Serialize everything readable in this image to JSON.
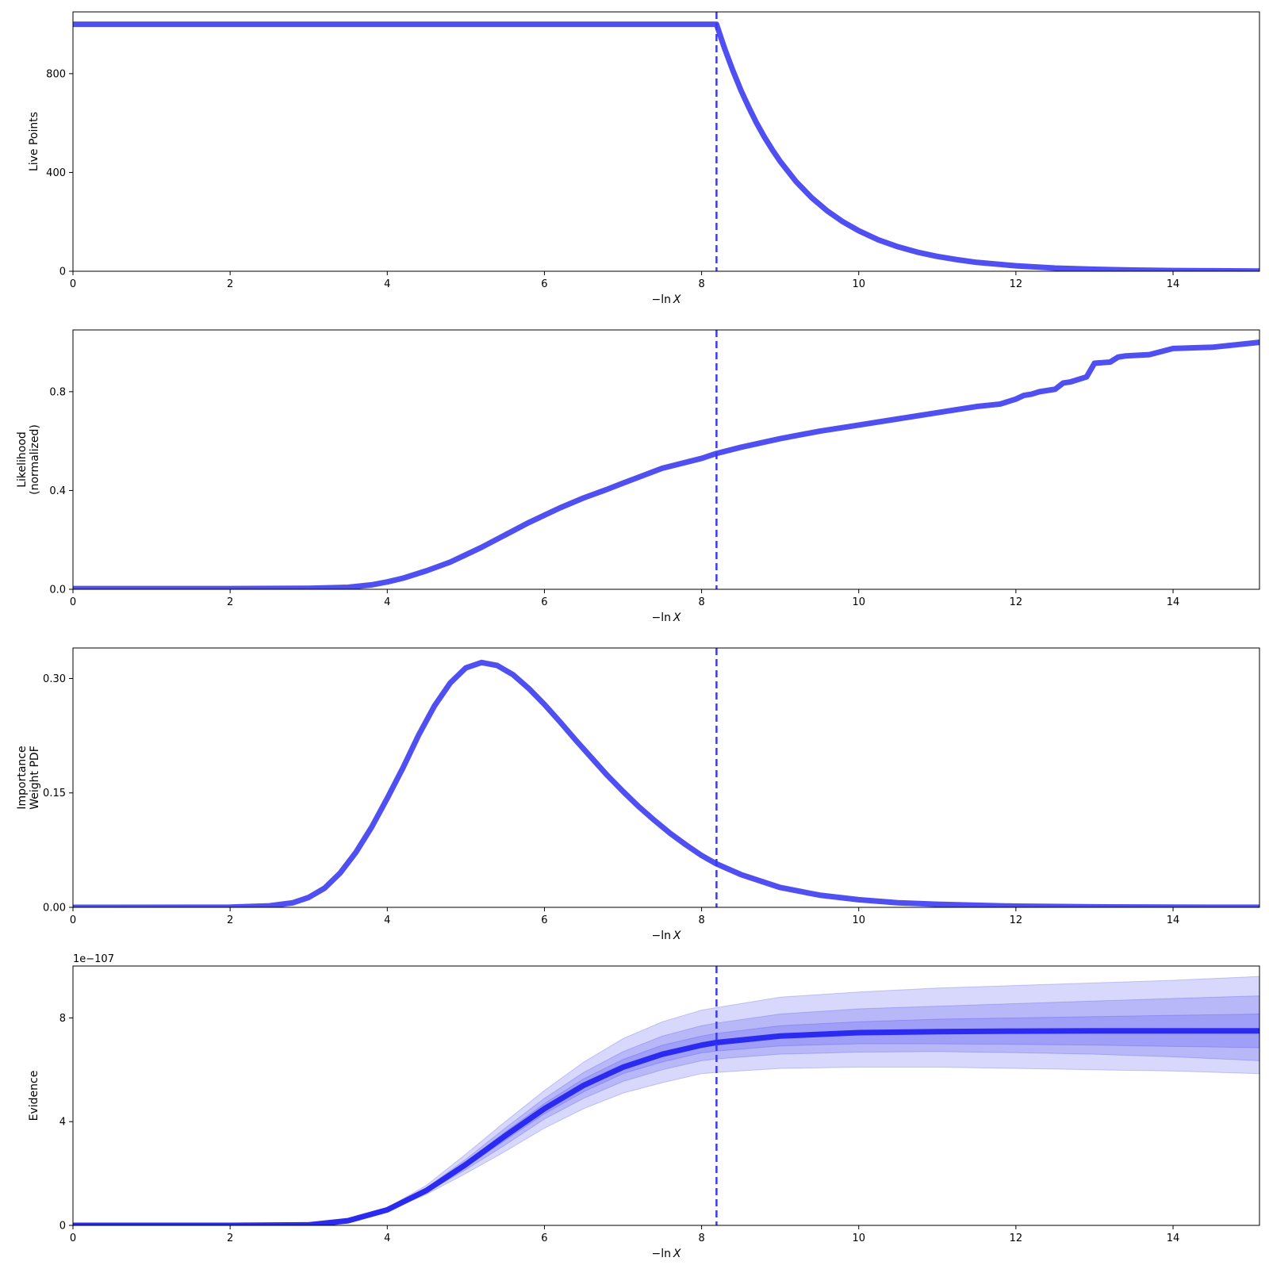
{
  "chart_data": [
    {
      "type": "line",
      "panel": "live-points",
      "ylabel_lines": [
        "Live Points"
      ],
      "xlabel_prefix": "−ln",
      "xlabel_var": "X",
      "xlim": [
        0,
        15.1
      ],
      "ylim": [
        0,
        1050
      ],
      "x_ticks": [
        0,
        2,
        4,
        6,
        8,
        10,
        12,
        14
      ],
      "x_tick_labels": [
        "0",
        "2",
        "4",
        "6",
        "8",
        "10",
        "12",
        "14"
      ],
      "y_ticks": [
        0,
        400,
        800
      ],
      "y_tick_labels": [
        "0",
        "400",
        "800"
      ],
      "vline_x": 8.19,
      "line_color": "#5050f2",
      "series": {
        "x": [
          0,
          8.19,
          8.25,
          8.3,
          8.4,
          8.5,
          8.6,
          8.7,
          8.8,
          8.9,
          9.0,
          9.2,
          9.4,
          9.6,
          9.8,
          10.0,
          10.25,
          10.5,
          10.75,
          11.0,
          11.25,
          11.5,
          12.0,
          12.5,
          13.0,
          13.5,
          14.0,
          14.5,
          15.1
        ],
        "y": [
          1000,
          1000,
          942,
          896,
          811,
          733,
          664,
          600,
          543,
          492,
          445,
          364,
          298,
          244,
          200,
          164,
          127,
          99,
          77,
          60,
          47,
          36,
          22,
          13,
          8,
          5,
          3,
          2,
          1
        ]
      }
    },
    {
      "type": "line",
      "panel": "likelihood",
      "ylabel_lines": [
        "Likelihood",
        "(normalized)"
      ],
      "xlabel_prefix": "−ln",
      "xlabel_var": "X",
      "xlim": [
        0,
        15.1
      ],
      "ylim": [
        0,
        1.05
      ],
      "x_ticks": [
        0,
        2,
        4,
        6,
        8,
        10,
        12,
        14
      ],
      "x_tick_labels": [
        "0",
        "2",
        "4",
        "6",
        "8",
        "10",
        "12",
        "14"
      ],
      "y_ticks": [
        0,
        0.4,
        0.8
      ],
      "y_tick_labels": [
        "0.0",
        "0.4",
        "0.8"
      ],
      "vline_x": 8.19,
      "line_color": "#5050f2",
      "series": {
        "x": [
          0,
          2,
          3,
          3.5,
          3.8,
          4.0,
          4.2,
          4.5,
          4.8,
          5.0,
          5.2,
          5.5,
          5.8,
          6.0,
          6.2,
          6.5,
          6.8,
          7.0,
          7.5,
          8.0,
          8.19,
          8.5,
          9.0,
          9.5,
          10.0,
          10.5,
          11.0,
          11.5,
          11.8,
          12.0,
          12.1,
          12.2,
          12.3,
          12.5,
          12.6,
          12.7,
          12.9,
          13.0,
          13.2,
          13.3,
          13.4,
          13.7,
          14.0,
          14.5,
          15.1
        ],
        "y": [
          0.003,
          0.003,
          0.004,
          0.008,
          0.018,
          0.03,
          0.045,
          0.075,
          0.11,
          0.14,
          0.17,
          0.22,
          0.27,
          0.3,
          0.33,
          0.37,
          0.405,
          0.43,
          0.49,
          0.53,
          0.55,
          0.575,
          0.61,
          0.64,
          0.665,
          0.69,
          0.715,
          0.74,
          0.75,
          0.77,
          0.785,
          0.79,
          0.8,
          0.81,
          0.835,
          0.84,
          0.86,
          0.915,
          0.92,
          0.94,
          0.945,
          0.95,
          0.975,
          0.98,
          1.0
        ]
      }
    },
    {
      "type": "line",
      "panel": "importance-weight",
      "ylabel_lines": [
        "Importance",
        "Weight PDF"
      ],
      "xlabel_prefix": "−ln",
      "xlabel_var": "X",
      "xlim": [
        0,
        15.1
      ],
      "ylim": [
        0,
        0.34
      ],
      "x_ticks": [
        0,
        2,
        4,
        6,
        8,
        10,
        12,
        14
      ],
      "x_tick_labels": [
        "0",
        "2",
        "4",
        "6",
        "8",
        "10",
        "12",
        "14"
      ],
      "y_ticks": [
        0,
        0.15,
        0.3
      ],
      "y_tick_labels": [
        "0.00",
        "0.15",
        "0.30"
      ],
      "vline_x": 8.19,
      "line_color": "#5050f2",
      "series": {
        "x": [
          0,
          2,
          2.5,
          2.8,
          3.0,
          3.2,
          3.4,
          3.6,
          3.8,
          4.0,
          4.2,
          4.4,
          4.6,
          4.8,
          5.0,
          5.2,
          5.4,
          5.6,
          5.8,
          6.0,
          6.2,
          6.4,
          6.6,
          6.8,
          7.0,
          7.2,
          7.4,
          7.6,
          7.8,
          8.0,
          8.19,
          8.5,
          9.0,
          9.5,
          10.0,
          10.5,
          11.0,
          12.0,
          13.0,
          14.0,
          15.1
        ],
        "y": [
          0,
          0.0002,
          0.002,
          0.006,
          0.013,
          0.025,
          0.045,
          0.072,
          0.105,
          0.143,
          0.183,
          0.226,
          0.264,
          0.294,
          0.314,
          0.321,
          0.317,
          0.305,
          0.287,
          0.266,
          0.243,
          0.219,
          0.196,
          0.173,
          0.152,
          0.132,
          0.114,
          0.097,
          0.082,
          0.068,
          0.057,
          0.043,
          0.026,
          0.016,
          0.01,
          0.006,
          0.004,
          0.0015,
          0.0006,
          0.0002,
          0.0001
        ]
      }
    },
    {
      "type": "area",
      "panel": "evidence",
      "ylabel_lines": [
        "Evidence"
      ],
      "xlabel_prefix": "−ln",
      "xlabel_var": "X",
      "offset_text": "1e−107",
      "xlim": [
        0,
        15.1
      ],
      "ylim": [
        0,
        10
      ],
      "x_ticks": [
        0,
        2,
        4,
        6,
        8,
        10,
        12,
        14
      ],
      "x_tick_labels": [
        "0",
        "2",
        "4",
        "6",
        "8",
        "10",
        "12",
        "14"
      ],
      "y_ticks": [
        0,
        4,
        8
      ],
      "y_tick_labels": [
        "0",
        "4",
        "8"
      ],
      "vline_x": 8.19,
      "line_color": "#2a2af0",
      "band_color": "#3b3bf0",
      "band_opacity": 0.2,
      "x": [
        0,
        2,
        3,
        3.5,
        4,
        4.5,
        5,
        5.5,
        6,
        6.5,
        7,
        7.5,
        8,
        8.19,
        9,
        10,
        11,
        12,
        13,
        14,
        15.1
      ],
      "median": [
        0,
        0,
        0.02,
        0.18,
        0.6,
        1.35,
        2.35,
        3.45,
        4.5,
        5.4,
        6.1,
        6.6,
        6.95,
        7.05,
        7.3,
        7.43,
        7.47,
        7.49,
        7.5,
        7.5,
        7.5
      ],
      "bands": [
        {
          "lower": [
            0,
            0,
            0.02,
            0.17,
            0.55,
            1.2,
            2.0,
            2.85,
            3.75,
            4.5,
            5.1,
            5.5,
            5.85,
            5.9,
            6.05,
            6.1,
            6.1,
            6.05,
            6.0,
            5.95,
            5.85
          ],
          "upper": [
            0,
            0,
            0.02,
            0.2,
            0.68,
            1.55,
            2.75,
            4.0,
            5.2,
            6.3,
            7.2,
            7.85,
            8.3,
            8.4,
            8.8,
            9.0,
            9.15,
            9.25,
            9.35,
            9.45,
            9.6
          ]
        },
        {
          "lower": [
            0,
            0,
            0.02,
            0.18,
            0.57,
            1.27,
            2.15,
            3.1,
            4.1,
            4.9,
            5.55,
            6.0,
            6.35,
            6.42,
            6.6,
            6.68,
            6.7,
            6.66,
            6.6,
            6.5,
            6.35
          ],
          "upper": [
            0,
            0,
            0.02,
            0.19,
            0.64,
            1.45,
            2.55,
            3.75,
            4.9,
            5.9,
            6.7,
            7.3,
            7.7,
            7.8,
            8.15,
            8.35,
            8.45,
            8.55,
            8.65,
            8.75,
            8.85
          ]
        },
        {
          "lower": [
            0,
            0,
            0.02,
            0.18,
            0.58,
            1.3,
            2.25,
            3.28,
            4.3,
            5.15,
            5.85,
            6.3,
            6.65,
            6.72,
            6.92,
            7.0,
            7.0,
            6.98,
            6.95,
            6.9,
            6.85
          ],
          "upper": [
            0,
            0,
            0.02,
            0.19,
            0.62,
            1.4,
            2.45,
            3.6,
            4.7,
            5.65,
            6.4,
            6.95,
            7.3,
            7.4,
            7.7,
            7.85,
            7.95,
            8.0,
            8.05,
            8.1,
            8.15
          ]
        }
      ]
    }
  ]
}
